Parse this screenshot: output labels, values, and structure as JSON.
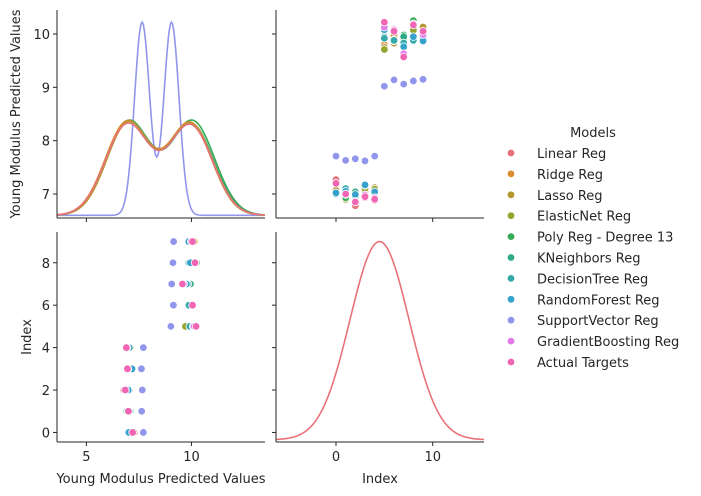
{
  "chart_data": {
    "type": "pairplot",
    "variables": [
      "Young Modulus Predicted Values",
      "Index"
    ],
    "legend": {
      "title": "Models",
      "placement": "right",
      "entries": [
        {
          "name": "Linear Reg",
          "color": "#e8727a"
        },
        {
          "name": "Ridge Reg",
          "color": "#d98b2f"
        },
        {
          "name": "Lasso Reg",
          "color": "#b3962d"
        },
        {
          "name": "ElasticNet Reg",
          "color": "#97a430"
        },
        {
          "name": "Poly Reg - Degree 13",
          "color": "#35ab55"
        },
        {
          "name": "KNeighbors Reg",
          "color": "#2fa987"
        },
        {
          "name": "DecisionTree Reg",
          "color": "#32a8a9"
        },
        {
          "name": "RandomForest Reg",
          "color": "#36a2cb"
        },
        {
          "name": "SupportVector Reg",
          "color": "#9196ec"
        },
        {
          "name": "GradientBoosting Reg",
          "color": "#e17ae8"
        },
        {
          "name": "Actual Targets",
          "color": "#f065b4"
        }
      ]
    },
    "axes": {
      "young_range": [
        3.6,
        13.5
      ],
      "young_ticks": [
        5,
        10
      ],
      "young_axis_label": "Young Modulus Predicted Values",
      "young_kde_ylim": [
        6.55,
        10.45
      ],
      "young_kde_ticks": [
        7,
        8,
        9,
        10
      ],
      "index_range": [
        -6.2,
        15.3
      ],
      "index_ticks": [
        0,
        10
      ],
      "index_axis_label": "Index",
      "index_scatter_ylim": [
        -0.45,
        9.45
      ],
      "index_scatter_ticks": [
        0,
        2,
        4,
        6,
        8
      ]
    },
    "diag_young_kde": {
      "groups": [
        {
          "color": "#9196ec",
          "peaks": [
            {
              "mu": 7.65,
              "sigma": 0.36,
              "h": 3.62
            },
            {
              "mu": 9.05,
              "sigma": 0.36,
              "h": 3.62
            }
          ],
          "base": 6.6
        },
        {
          "color": "#35ab55",
          "peaks": [
            {
              "mu": 7.0,
              "sigma": 1.05,
              "h": 1.76
            },
            {
              "mu": 10.05,
              "sigma": 1.05,
              "h": 1.76
            }
          ],
          "base": 6.6
        },
        {
          "color": "#2fa987",
          "peaks": [
            {
              "mu": 7.0,
              "sigma": 1.05,
              "h": 1.74
            },
            {
              "mu": 10.0,
              "sigma": 1.05,
              "h": 1.7
            }
          ],
          "base": 6.6
        },
        {
          "color": "#d98b2f",
          "peaks": [
            {
              "mu": 6.95,
              "sigma": 1.05,
              "h": 1.75
            },
            {
              "mu": 9.95,
              "sigma": 1.05,
              "h": 1.72
            }
          ],
          "base": 6.6
        },
        {
          "color": "#b3962d",
          "peaks": [
            {
              "mu": 7.0,
              "sigma": 1.03,
              "h": 1.73
            },
            {
              "mu": 9.95,
              "sigma": 1.03,
              "h": 1.7
            }
          ],
          "base": 6.6
        },
        {
          "color": "#e8727a",
          "peaks": [
            {
              "mu": 6.95,
              "sigma": 1.05,
              "h": 1.7
            },
            {
              "mu": 9.95,
              "sigma": 1.05,
              "h": 1.68
            }
          ],
          "base": 6.6
        }
      ]
    },
    "diag_index_kde": {
      "color": "#e8727a",
      "mu": 4.5,
      "sigma": 3.05,
      "peak": 9.0
    },
    "young_by_index": {
      "x": [
        0,
        1,
        2,
        3,
        4,
        5,
        6,
        7,
        8,
        9
      ],
      "series": [
        {
          "name": "Linear Reg",
          "values": [
            7.27,
            6.96,
            6.78,
            6.93,
            6.88,
            10.12,
            10.05,
            9.97,
            10.07,
            10.07
          ]
        },
        {
          "name": "Ridge Reg",
          "values": [
            7.18,
            7.0,
            6.87,
            6.97,
            6.96,
            9.8,
            9.96,
            9.87,
            10.05,
            9.96
          ]
        },
        {
          "name": "Lasso Reg",
          "values": [
            7.07,
            6.93,
            6.95,
            7.04,
            7.12,
            9.75,
            9.83,
            9.96,
            10.12,
            10.13
          ]
        },
        {
          "name": "ElasticNet Reg",
          "values": [
            7.02,
            6.9,
            6.94,
            7.1,
            7.09,
            9.71,
            9.89,
            9.91,
            10.07,
            10.0
          ]
        },
        {
          "name": "Poly Reg - Degree 13",
          "values": [
            7.0,
            6.93,
            6.95,
            7.16,
            7.0,
            9.96,
            9.87,
            9.98,
            10.25,
            10.05
          ]
        },
        {
          "name": "KNeighbors Reg",
          "values": [
            6.99,
            7.1,
            7.04,
            6.98,
            6.97,
            9.95,
            9.87,
            9.95,
            9.9,
            9.94
          ]
        },
        {
          "name": "DecisionTree Reg",
          "values": [
            7.0,
            7.1,
            6.99,
            7.18,
            7.03,
            9.92,
            9.88,
            9.83,
            9.88,
            9.93
          ]
        },
        {
          "name": "RandomForest Reg",
          "values": [
            7.02,
            7.05,
            6.99,
            7.17,
            7.04,
            10.08,
            10.05,
            9.76,
            9.95,
            9.87
          ]
        },
        {
          "name": "SupportVector Reg",
          "values": [
            7.71,
            7.63,
            7.66,
            7.62,
            7.71,
            9.02,
            9.14,
            9.06,
            9.12,
            9.15
          ]
        },
        {
          "name": "GradientBoosting Reg",
          "values": [
            7.2,
            6.99,
            6.86,
            6.98,
            6.93,
            10.13,
            10.08,
            9.63,
            10.19,
            9.99
          ]
        },
        {
          "name": "Actual Targets",
          "values": [
            7.2,
            7.0,
            6.85,
            6.95,
            6.9,
            10.22,
            10.05,
            9.57,
            10.17,
            10.05
          ]
        }
      ]
    }
  }
}
